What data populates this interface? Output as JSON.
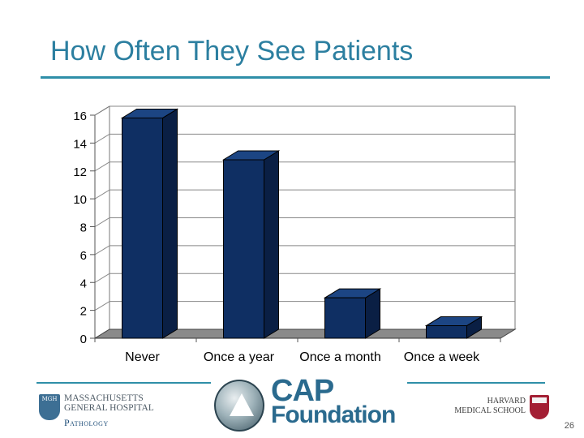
{
  "slide": {
    "title": "How Often They See Patients",
    "page_number": "26"
  },
  "colors": {
    "title": "#2c7fa0",
    "rule": "#2e8fa8",
    "bar_front": "#0f2f63",
    "bar_side": "#0a1f44",
    "bar_top": "#1c4583",
    "floor": "#8a8a8a"
  },
  "chart_data": {
    "type": "bar",
    "title": "",
    "xlabel": "",
    "ylabel": "",
    "categories": [
      "Never",
      "Once a year",
      "Once a month",
      "Once a week"
    ],
    "values": [
      15.8,
      12.8,
      2.9,
      0.9
    ],
    "ylim": [
      0,
      16
    ],
    "yticks": [
      0,
      2,
      4,
      6,
      8,
      10,
      12,
      14,
      16
    ],
    "grid": true,
    "style": "3d"
  },
  "logos": {
    "mgh": {
      "shield_text": "MGH",
      "name_line1": "MASSACHUSETTS",
      "name_line2": "GENERAL HOSPITAL",
      "department": "Pathology"
    },
    "cap": {
      "word1": "CAP",
      "word2": "Foundation"
    },
    "harvard": {
      "line1": "HARVARD",
      "line2": "MEDICAL SCHOOL"
    }
  }
}
